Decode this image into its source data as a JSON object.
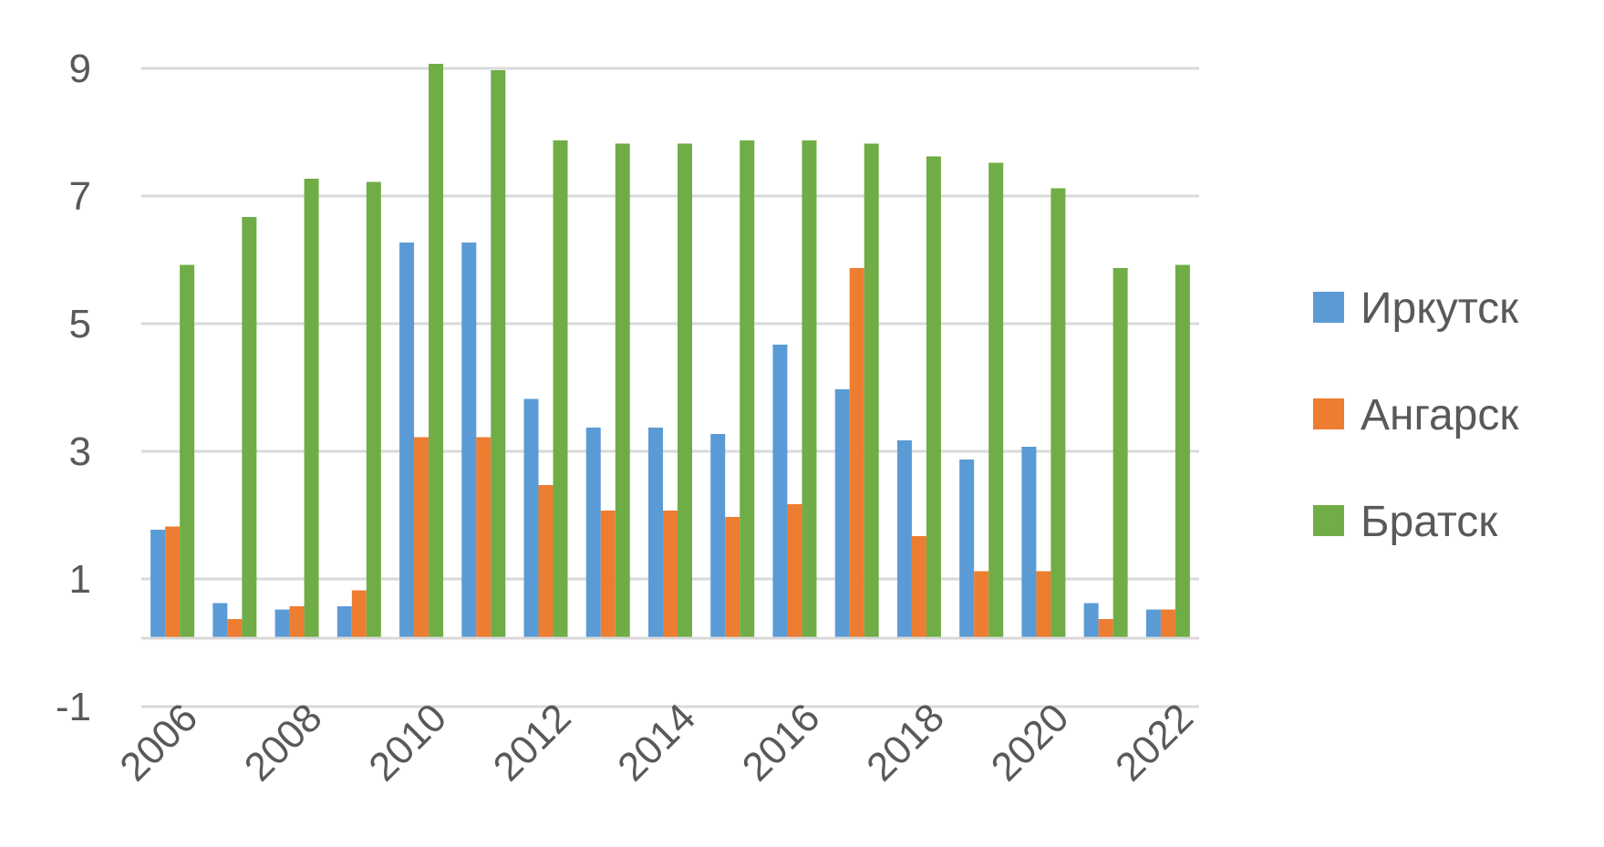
{
  "chart_data": {
    "type": "bar",
    "title": "",
    "xlabel": "",
    "ylabel": "",
    "ylim": [
      -1,
      9
    ],
    "yticks": [
      -1,
      1,
      3,
      5,
      7,
      9
    ],
    "grid": true,
    "legend_position": "right",
    "categories": [
      "2006",
      "2007",
      "2008",
      "2009",
      "2010",
      "2011",
      "2012",
      "2013",
      "2014",
      "2015",
      "2016",
      "2017",
      "2018",
      "2019",
      "2020",
      "2021",
      "2022"
    ],
    "x_tick_labels": [
      "2006",
      "2008",
      "2010",
      "2012",
      "2014",
      "2016",
      "2018",
      "2020",
      "2022"
    ],
    "series": [
      {
        "name": "Иркутск",
        "color": "#5B9BD5",
        "values": [
          1.7,
          0.55,
          0.45,
          0.5,
          6.2,
          6.2,
          3.75,
          3.3,
          3.3,
          3.2,
          4.6,
          3.9,
          3.1,
          2.8,
          3.0,
          0.55,
          0.45
        ]
      },
      {
        "name": "Ангарск",
        "color": "#ED7D31",
        "values": [
          1.75,
          0.3,
          0.5,
          0.75,
          3.15,
          3.15,
          2.4,
          2.0,
          2.0,
          1.9,
          2.1,
          5.8,
          1.6,
          1.05,
          1.05,
          0.3,
          0.45
        ]
      },
      {
        "name": "Братск",
        "color": "#70AD47",
        "values": [
          5.85,
          6.6,
          7.2,
          7.15,
          9.0,
          8.9,
          7.8,
          7.75,
          7.75,
          7.8,
          7.8,
          7.75,
          7.55,
          7.45,
          7.05,
          5.8,
          5.85
        ]
      }
    ]
  }
}
